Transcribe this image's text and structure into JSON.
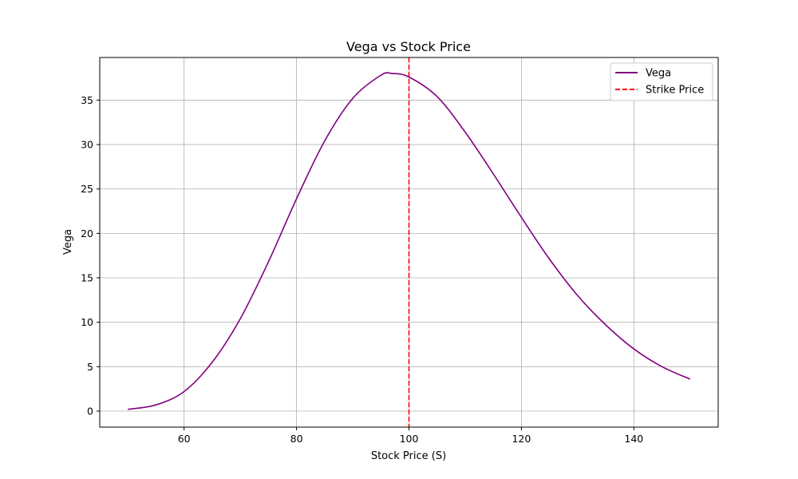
{
  "chart_data": {
    "type": "line",
    "title": "Vega vs Stock Price",
    "xlabel": "Stock Price (S)",
    "ylabel": "Vega",
    "xlim": [
      45,
      155
    ],
    "ylim": [
      -1.8,
      39.8
    ],
    "xticks": [
      60,
      80,
      100,
      120,
      140
    ],
    "yticks": [
      0,
      5,
      10,
      15,
      20,
      25,
      30,
      35
    ],
    "grid": true,
    "legend_position": "top-right",
    "series": [
      {
        "name": "Vega",
        "color": "#800080",
        "style": "solid",
        "x": [
          50,
          55,
          60,
          65,
          70,
          75,
          80,
          85,
          90,
          95,
          97,
          100,
          105,
          110,
          115,
          120,
          125,
          130,
          135,
          140,
          145,
          150
        ],
        "y": [
          0.2,
          0.7,
          2.2,
          5.5,
          10.4,
          16.8,
          23.9,
          30.4,
          35.2,
          37.8,
          38.0,
          37.6,
          35.4,
          31.4,
          26.7,
          21.8,
          17.1,
          13.0,
          9.7,
          7.0,
          5.0,
          3.6
        ]
      },
      {
        "name": "Strike Price",
        "color": "#ff0000",
        "style": "dashed",
        "vline_x": 100
      }
    ]
  }
}
